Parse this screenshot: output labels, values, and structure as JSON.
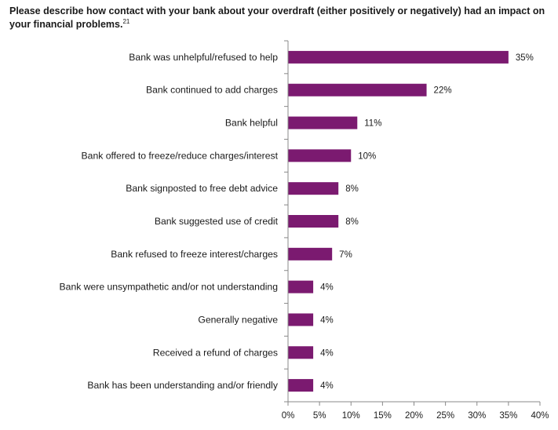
{
  "chart_data": {
    "type": "bar",
    "orientation": "horizontal",
    "title": "Please describe how contact with your bank about your overdraft (either positively or negatively) had an impact on your financial problems.",
    "title_footnote": "21",
    "categories": [
      "Bank was unhelpful/refused to help",
      "Bank continued to add charges",
      "Bank helpful",
      "Bank offered to freeze/reduce charges/interest",
      "Bank signposted to free debt advice",
      "Bank suggested use of credit",
      "Bank refused to freeze interest/charges",
      "Bank were unsympathetic and/or not understanding",
      "Generally negative",
      "Received a refund of charges",
      "Bank has been understanding and/or friendly"
    ],
    "values": [
      35,
      22,
      11,
      10,
      8,
      8,
      7,
      4,
      4,
      4,
      4
    ],
    "value_labels": [
      "35%",
      "22%",
      "11%",
      "10%",
      "8%",
      "8%",
      "7%",
      "4%",
      "4%",
      "4%",
      "4%"
    ],
    "x_ticks": [
      "0%",
      "5%",
      "10%",
      "15%",
      "20%",
      "25%",
      "30%",
      "35%",
      "40%"
    ],
    "xlim": [
      0,
      40
    ],
    "grid": false,
    "legend": false,
    "bar_color": "#7b1a70",
    "axis_color": "#888888"
  }
}
